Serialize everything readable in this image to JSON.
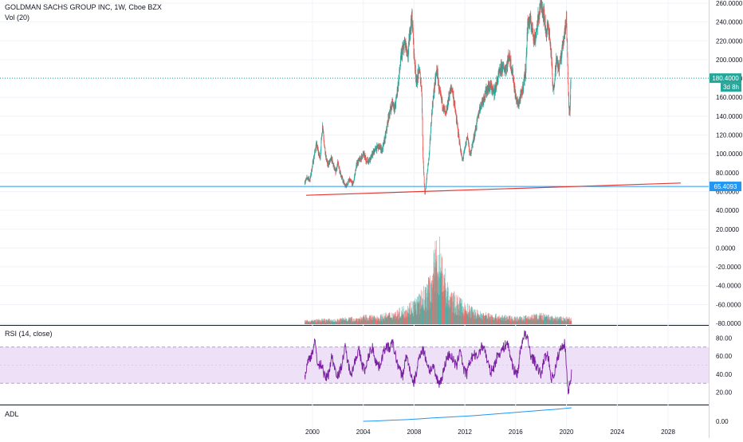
{
  "header": {
    "title": "GOLDMAN SACHS GROUP INC, 1W, Cboe BZX",
    "vol_label": "Vol (20)"
  },
  "colors": {
    "up": "#26a69a",
    "down": "#ef5350",
    "price_line": "#26a69a",
    "support_line": "#2196f3",
    "trend_line": "#e53935",
    "rsi_line": "#7b1fa2",
    "rsi_band": "#ede0f7",
    "adl_line": "#2196f3",
    "grid": "#f0f3fa"
  },
  "chart_data": [
    {
      "type": "candlestick",
      "title": "GOLDMAN SACHS GROUP INC, 1W, Cboe BZX",
      "x_ticks": [
        "2000",
        "2004",
        "2008",
        "2012",
        "2016",
        "2020",
        "2024",
        "2028"
      ],
      "x_range": [
        1999.0,
        2029.5
      ],
      "y_ticks": [
        "260.0000",
        "240.0000",
        "220.0000",
        "200.0000",
        "180.0000",
        "160.0000",
        "140.0000",
        "120.0000",
        "100.0000",
        "80.0000",
        "60.0000",
        "40.0000",
        "20.0000",
        "0.0000",
        "-20.0000",
        "-40.0000",
        "-60.0000",
        "-80.0000"
      ],
      "y_range": [
        -80,
        265
      ],
      "price_series": [
        [
          1999.4,
          70
        ],
        [
          1999.6,
          75
        ],
        [
          1999.8,
          72
        ],
        [
          2000.0,
          88
        ],
        [
          2000.3,
          110
        ],
        [
          2000.6,
          95
        ],
        [
          2000.8,
          132
        ],
        [
          2001.0,
          100
        ],
        [
          2001.2,
          88
        ],
        [
          2001.5,
          95
        ],
        [
          2001.8,
          80
        ],
        [
          2002.0,
          90
        ],
        [
          2002.3,
          75
        ],
        [
          2002.6,
          65
        ],
        [
          2002.9,
          72
        ],
        [
          2003.2,
          68
        ],
        [
          2003.5,
          90
        ],
        [
          2003.8,
          95
        ],
        [
          2004.0,
          100
        ],
        [
          2004.3,
          92
        ],
        [
          2004.6,
          96
        ],
        [
          2004.9,
          104
        ],
        [
          2005.2,
          108
        ],
        [
          2005.5,
          104
        ],
        [
          2005.8,
          122
        ],
        [
          2006.0,
          140
        ],
        [
          2006.3,
          155
        ],
        [
          2006.5,
          148
        ],
        [
          2006.8,
          180
        ],
        [
          2007.0,
          205
        ],
        [
          2007.3,
          218
        ],
        [
          2007.5,
          200
        ],
        [
          2007.7,
          235
        ],
        [
          2007.85,
          245
        ],
        [
          2008.0,
          205
        ],
        [
          2008.2,
          175
        ],
        [
          2008.4,
          190
        ],
        [
          2008.6,
          170
        ],
        [
          2008.7,
          100
        ],
        [
          2008.85,
          55
        ],
        [
          2009.0,
          75
        ],
        [
          2009.2,
          100
        ],
        [
          2009.4,
          145
        ],
        [
          2009.6,
          170
        ],
        [
          2009.8,
          190
        ],
        [
          2010.0,
          165
        ],
        [
          2010.3,
          150
        ],
        [
          2010.5,
          140
        ],
        [
          2010.8,
          165
        ],
        [
          2011.0,
          170
        ],
        [
          2011.2,
          150
        ],
        [
          2011.5,
          120
        ],
        [
          2011.8,
          92
        ],
        [
          2012.0,
          105
        ],
        [
          2012.2,
          120
        ],
        [
          2012.4,
          98
        ],
        [
          2012.6,
          110
        ],
        [
          2012.9,
          130
        ],
        [
          2013.2,
          150
        ],
        [
          2013.5,
          160
        ],
        [
          2013.8,
          170
        ],
        [
          2014.0,
          172
        ],
        [
          2014.3,
          165
        ],
        [
          2014.6,
          180
        ],
        [
          2014.9,
          192
        ],
        [
          2015.2,
          190
        ],
        [
          2015.5,
          205
        ],
        [
          2015.8,
          182
        ],
        [
          2016.0,
          160
        ],
        [
          2016.2,
          152
        ],
        [
          2016.5,
          165
        ],
        [
          2016.8,
          190
        ],
        [
          2016.95,
          240
        ],
        [
          2017.2,
          240
        ],
        [
          2017.5,
          220
        ],
        [
          2017.8,
          245
        ],
        [
          2018.0,
          262
        ],
        [
          2018.2,
          250
        ],
        [
          2018.4,
          230
        ],
        [
          2018.6,
          235
        ],
        [
          2018.8,
          205
        ],
        [
          2018.95,
          165
        ],
        [
          2019.2,
          200
        ],
        [
          2019.4,
          190
        ],
        [
          2019.6,
          205
        ],
        [
          2019.8,
          225
        ],
        [
          2020.0,
          245
        ],
        [
          2020.1,
          190
        ],
        [
          2020.2,
          150
        ],
        [
          2020.25,
          140
        ],
        [
          2020.35,
          180
        ]
      ],
      "annotations": [
        {
          "type": "horizontal_line",
          "y": 180.4,
          "label": "180.4000",
          "sublabel": "3d 8h"
        },
        {
          "type": "horizontal_line",
          "y": 65.4093,
          "label": "65.4093"
        },
        {
          "type": "trend_line",
          "from": [
            1999.5,
            56
          ],
          "to": [
            2029.0,
            69
          ]
        }
      ]
    },
    {
      "type": "bar",
      "title": "Vol (20)",
      "x_range": [
        1999.4,
        2020.4
      ],
      "values_relative": [
        0.04,
        0.05,
        0.06,
        0.05,
        0.08,
        0.07,
        0.1,
        0.09,
        0.12,
        0.15,
        0.22,
        0.3,
        0.45,
        1.0,
        0.4,
        0.28,
        0.2,
        0.14,
        0.12,
        0.1,
        0.09,
        0.08,
        0.1,
        0.12,
        0.09,
        0.08,
        0.07
      ]
    },
    {
      "type": "line",
      "title": "RSI (14, close)",
      "y_ticks": [
        "80.00",
        "60.00",
        "40.00",
        "20.00"
      ],
      "y_range": [
        10,
        90
      ],
      "band": [
        30,
        70
      ],
      "x_range": [
        1999.4,
        2020.4
      ],
      "values": [
        38,
        55,
        62,
        75,
        48,
        52,
        35,
        40,
        60,
        45,
        38,
        52,
        70,
        48,
        42,
        58,
        66,
        50,
        44,
        62,
        70,
        55,
        48,
        60,
        72,
        68,
        75,
        58,
        45,
        38,
        60,
        48,
        28,
        40,
        62,
        68,
        55,
        44,
        48,
        35,
        30,
        42,
        58,
        62,
        55,
        48,
        70,
        45,
        40,
        55,
        62,
        58,
        68,
        72,
        55,
        42,
        48,
        60,
        65,
        70,
        75,
        58,
        44,
        40,
        70,
        85,
        78,
        60,
        55,
        45,
        40,
        58,
        62,
        35,
        42,
        60,
        70,
        75,
        20,
        42
      ]
    },
    {
      "type": "line",
      "title": "ADL",
      "y_ticks": [
        "0.00"
      ],
      "x_range": [
        2004.0,
        2020.4
      ],
      "values_relative": [
        0.0,
        0.03,
        0.08,
        0.12,
        0.18,
        0.25,
        0.3,
        0.36,
        0.42,
        0.5,
        0.58,
        0.66,
        0.74,
        0.82,
        0.9,
        1.0
      ]
    }
  ],
  "rsi_label": "RSI (14, close)",
  "adl_label": "ADL"
}
